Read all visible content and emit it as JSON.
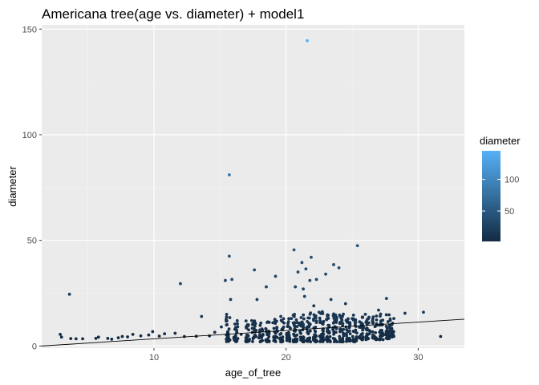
{
  "chart_data": {
    "type": "scatter",
    "title": "Americana tree(age vs. diameter) + model1",
    "xlabel": "age_of_tree",
    "ylabel": "diameter",
    "xlim": [
      1.5,
      33.5
    ],
    "ylim": [
      -1,
      152
    ],
    "x_ticks": [
      10,
      20,
      30
    ],
    "x_tick_labels": [
      "10",
      "20",
      "30"
    ],
    "y_ticks": [
      0,
      50,
      100,
      150
    ],
    "y_tick_labels": [
      "0",
      "50",
      "100",
      "150"
    ],
    "grid": true,
    "background": "#ebebeb",
    "legend": {
      "title": "diameter",
      "position": "right",
      "type": "colorbar",
      "ticks": [
        50,
        100
      ],
      "tick_labels": [
        "50",
        "100"
      ],
      "range": [
        2,
        145
      ],
      "color_low": "#132b43",
      "color_high": "#56b1f7"
    },
    "points": [
      [
        2.9,
        5.5
      ],
      [
        3.0,
        4.2
      ],
      [
        3.6,
        24.5
      ],
      [
        3.7,
        3.5
      ],
      [
        4.1,
        3.4
      ],
      [
        4.6,
        3.4
      ],
      [
        5.6,
        3.6
      ],
      [
        5.8,
        4.2
      ],
      [
        6.5,
        3.6
      ],
      [
        6.8,
        3.2
      ],
      [
        7.3,
        3.9
      ],
      [
        7.6,
        4.5
      ],
      [
        8.0,
        4.3
      ],
      [
        8.4,
        5.5
      ],
      [
        9.0,
        4.8
      ],
      [
        9.6,
        5.2
      ],
      [
        9.9,
        6.8
      ],
      [
        10.4,
        4.7
      ],
      [
        10.8,
        5.8
      ],
      [
        11.6,
        6.0
      ],
      [
        12.0,
        29.5
      ],
      [
        12.3,
        4.5
      ],
      [
        13.2,
        4.6
      ],
      [
        13.6,
        14.0
      ],
      [
        14.2,
        4.8
      ],
      [
        14.6,
        6.5
      ],
      [
        15.1,
        9.0
      ],
      [
        15.4,
        31.0
      ],
      [
        15.5,
        15.0
      ],
      [
        15.6,
        3.2
      ],
      [
        15.7,
        42.5
      ],
      [
        15.7,
        81.0
      ],
      [
        15.8,
        22.0
      ],
      [
        15.9,
        31.5
      ],
      [
        16.3,
        12.0
      ],
      [
        16.6,
        5.5
      ],
      [
        17.0,
        8.5
      ],
      [
        17.4,
        12.0
      ],
      [
        17.6,
        36.0
      ],
      [
        17.8,
        22.0
      ],
      [
        18.2,
        5.0
      ],
      [
        18.5,
        28.0
      ],
      [
        18.7,
        7.0
      ],
      [
        19.0,
        11.0
      ],
      [
        19.2,
        33.0
      ],
      [
        19.6,
        14.0
      ],
      [
        20.1,
        5.0
      ],
      [
        20.4,
        13.0
      ],
      [
        20.6,
        45.5
      ],
      [
        20.7,
        28.0
      ],
      [
        20.9,
        35.0
      ],
      [
        21.0,
        10.0
      ],
      [
        21.2,
        39.5
      ],
      [
        21.3,
        27.0
      ],
      [
        21.4,
        23.5
      ],
      [
        21.5,
        36.5
      ],
      [
        21.6,
        144.5
      ],
      [
        21.8,
        31.0
      ],
      [
        21.9,
        42.0
      ],
      [
        22.1,
        19.0
      ],
      [
        22.3,
        31.5
      ],
      [
        22.5,
        16.0
      ],
      [
        23.0,
        34.0
      ],
      [
        23.4,
        22.0
      ],
      [
        23.6,
        38.5
      ],
      [
        24.0,
        37.0
      ],
      [
        24.5,
        20.0
      ],
      [
        25.0,
        13.0
      ],
      [
        25.4,
        47.5
      ],
      [
        26.0,
        15.0
      ],
      [
        26.6,
        11.0
      ],
      [
        27.0,
        17.0
      ],
      [
        27.6,
        22.5
      ],
      [
        28.0,
        10.0
      ],
      [
        29.0,
        15.5
      ],
      [
        30.4,
        16.0
      ],
      [
        31.7,
        4.5
      ]
    ],
    "columns": [
      {
        "x": 15.6,
        "ymin": 2,
        "ymax": 14
      },
      {
        "x": 16.2,
        "ymin": 2,
        "ymax": 11
      },
      {
        "x": 17.1,
        "ymin": 2,
        "ymax": 12
      },
      {
        "x": 17.6,
        "ymin": 2,
        "ymax": 12
      },
      {
        "x": 18.1,
        "ymin": 2,
        "ymax": 11
      },
      {
        "x": 18.6,
        "ymin": 2,
        "ymax": 12
      },
      {
        "x": 19.2,
        "ymin": 2,
        "ymax": 13
      },
      {
        "x": 19.7,
        "ymin": 2,
        "ymax": 13
      },
      {
        "x": 20.2,
        "ymin": 2,
        "ymax": 14
      },
      {
        "x": 20.7,
        "ymin": 2,
        "ymax": 15
      },
      {
        "x": 21.2,
        "ymin": 2,
        "ymax": 15
      },
      {
        "x": 21.7,
        "ymin": 2,
        "ymax": 16
      },
      {
        "x": 22.2,
        "ymin": 2,
        "ymax": 16
      },
      {
        "x": 22.7,
        "ymin": 2,
        "ymax": 17
      },
      {
        "x": 23.2,
        "ymin": 2,
        "ymax": 15
      },
      {
        "x": 23.7,
        "ymin": 2,
        "ymax": 16
      },
      {
        "x": 24.2,
        "ymin": 2,
        "ymax": 16
      },
      {
        "x": 24.7,
        "ymin": 2,
        "ymax": 15
      },
      {
        "x": 25.2,
        "ymin": 2,
        "ymax": 16
      },
      {
        "x": 25.7,
        "ymin": 3,
        "ymax": 15
      },
      {
        "x": 26.2,
        "ymin": 3,
        "ymax": 14
      },
      {
        "x": 26.7,
        "ymin": 3,
        "ymax": 15
      },
      {
        "x": 27.2,
        "ymin": 3,
        "ymax": 16
      },
      {
        "x": 27.7,
        "ymin": 3,
        "ymax": 15
      },
      {
        "x": 28.0,
        "ymin": 4,
        "ymax": 14
      }
    ],
    "fit_line": {
      "x": [
        1.5,
        33.5
      ],
      "y": [
        0.0,
        12.7
      ]
    }
  }
}
